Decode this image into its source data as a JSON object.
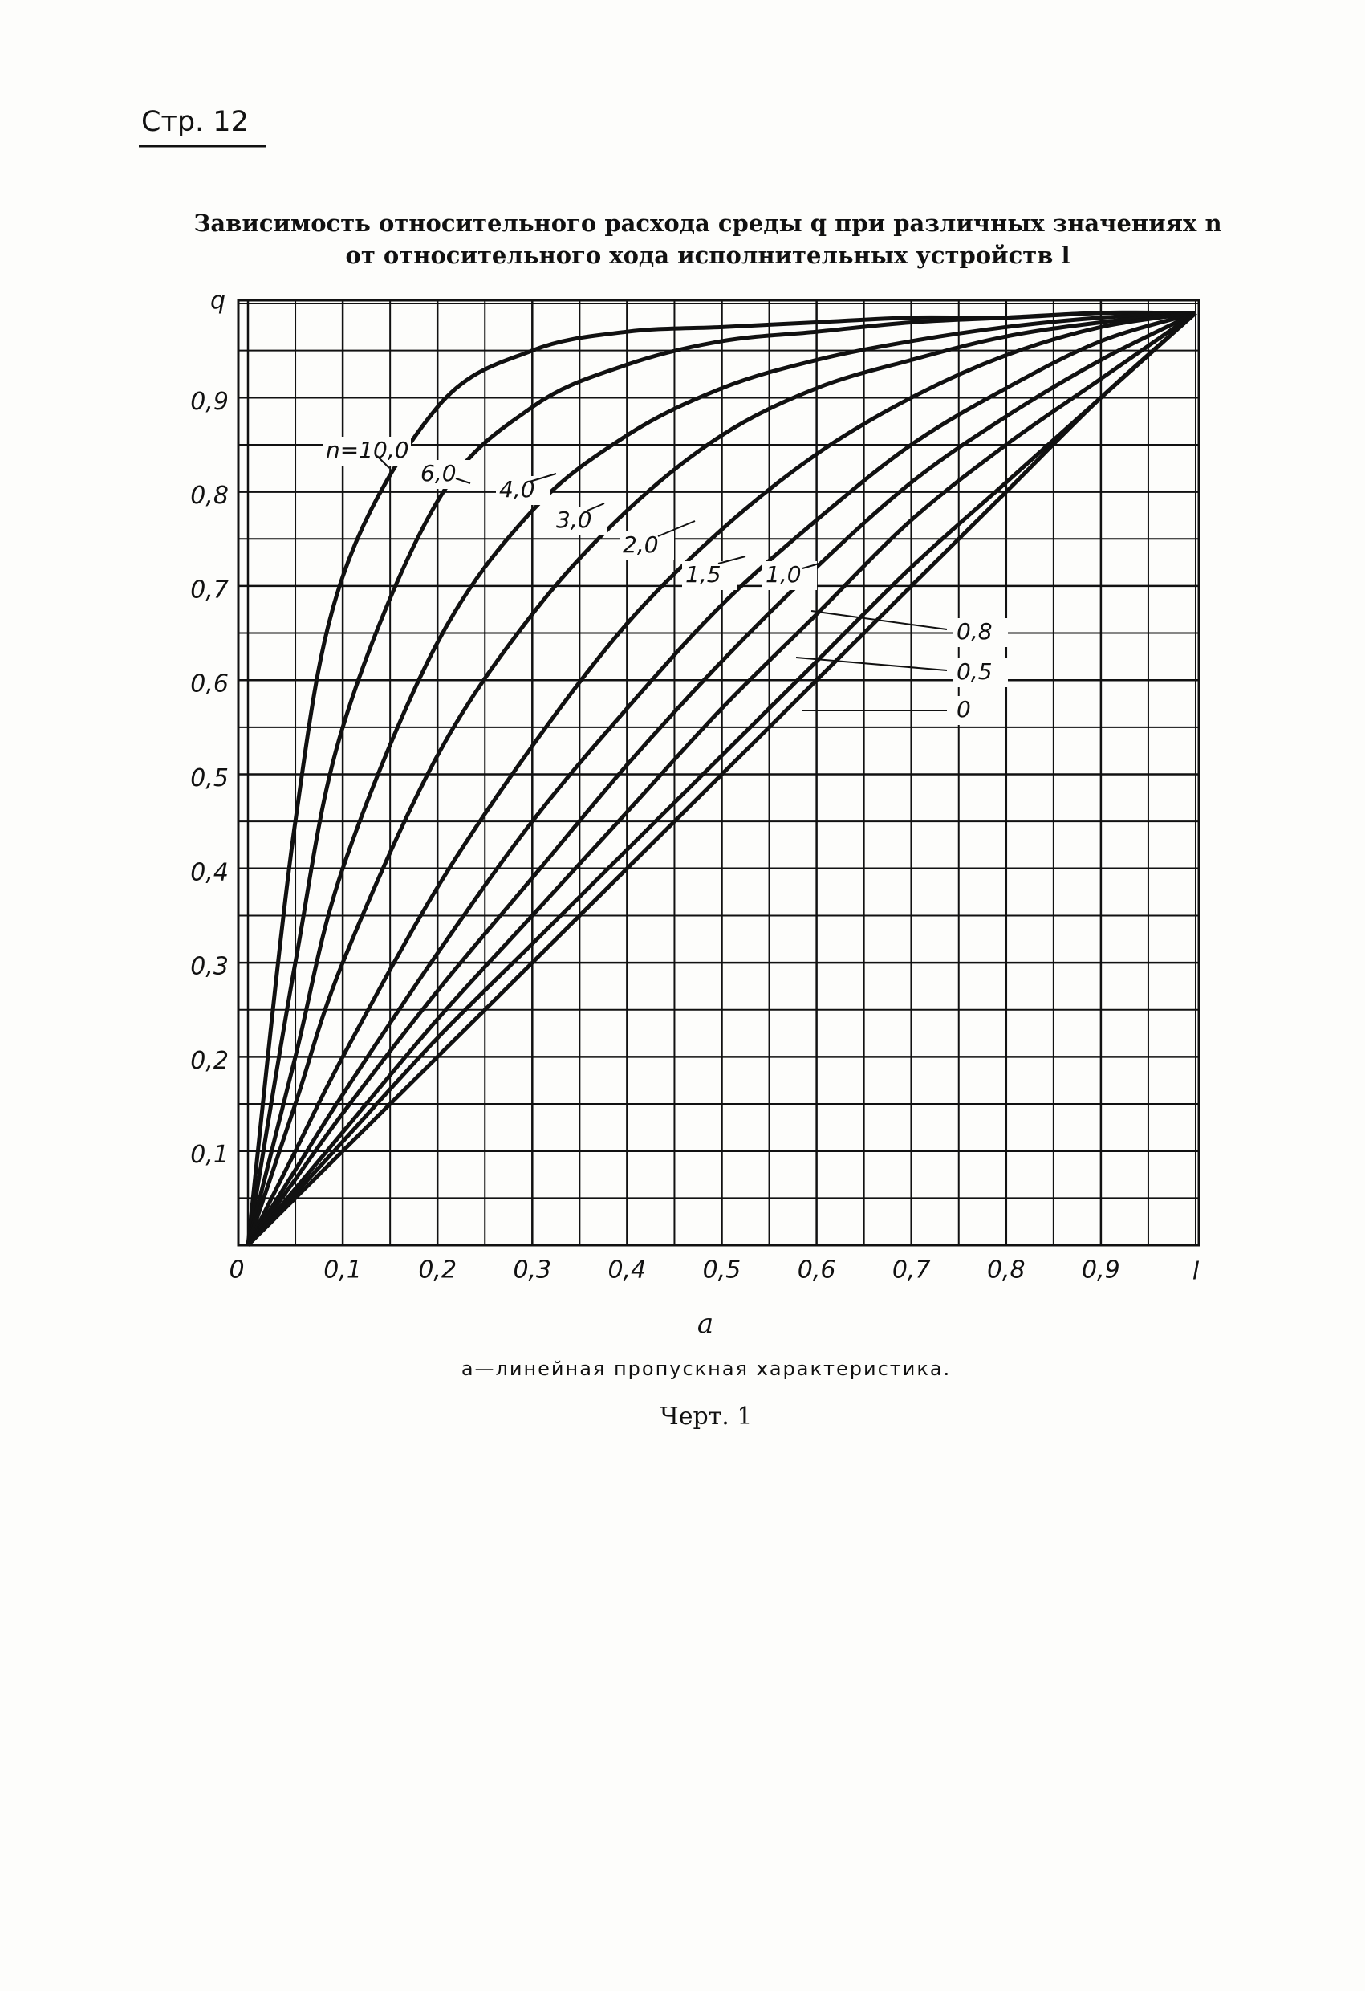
{
  "header": "Стр. 12",
  "chart_data": {
    "type": "line",
    "title": "Зависимость относительного расхода среды q при различных значениях n",
    "subtitle": "от относительного хода исполнительных устройств l",
    "xlabel": "l",
    "ylabel": "q",
    "x": [
      0,
      0.05,
      0.1,
      0.2,
      0.3,
      0.4,
      0.5,
      0.6,
      0.7,
      0.8,
      0.9,
      1.0
    ],
    "series": [
      {
        "name": "n=10,0",
        "color": "#111",
        "values": [
          0,
          0.45,
          0.71,
          0.89,
          0.95,
          0.97,
          0.975,
          0.98,
          0.985,
          0.985,
          0.99,
          0.99
        ]
      },
      {
        "name": "6,0",
        "color": "#111",
        "values": [
          0,
          0.3,
          0.55,
          0.79,
          0.89,
          0.935,
          0.96,
          0.97,
          0.98,
          0.985,
          0.99,
          0.99
        ]
      },
      {
        "name": "4,0",
        "color": "#111",
        "values": [
          0,
          0.2,
          0.4,
          0.64,
          0.78,
          0.86,
          0.91,
          0.94,
          0.96,
          0.975,
          0.985,
          0.99
        ]
      },
      {
        "name": "3,0",
        "color": "#111",
        "values": [
          0,
          0.15,
          0.3,
          0.52,
          0.67,
          0.78,
          0.86,
          0.91,
          0.94,
          0.965,
          0.98,
          0.99
        ]
      },
      {
        "name": "2,0",
        "color": "#111",
        "values": [
          0,
          0.1,
          0.2,
          0.38,
          0.53,
          0.66,
          0.76,
          0.84,
          0.9,
          0.945,
          0.975,
          0.99
        ]
      },
      {
        "name": "1,5",
        "color": "#111",
        "values": [
          0,
          0.08,
          0.16,
          0.31,
          0.45,
          0.57,
          0.68,
          0.77,
          0.85,
          0.91,
          0.96,
          0.99
        ]
      },
      {
        "name": "1,0",
        "color": "#111",
        "values": [
          0,
          0.07,
          0.14,
          0.27,
          0.39,
          0.51,
          0.62,
          0.72,
          0.81,
          0.88,
          0.94,
          0.99
        ]
      },
      {
        "name": "0,8",
        "color": "#111",
        "values": [
          0,
          0.06,
          0.12,
          0.24,
          0.35,
          0.46,
          0.57,
          0.67,
          0.77,
          0.85,
          0.92,
          0.99
        ]
      },
      {
        "name": "0,5",
        "color": "#111",
        "values": [
          0,
          0.055,
          0.11,
          0.22,
          0.32,
          0.42,
          0.52,
          0.62,
          0.72,
          0.81,
          0.9,
          0.99
        ]
      },
      {
        "name": "0",
        "color": "#111",
        "values": [
          0,
          0.05,
          0.1,
          0.2,
          0.3,
          0.4,
          0.5,
          0.6,
          0.7,
          0.8,
          0.9,
          0.99
        ]
      }
    ],
    "xlim": [
      0,
      1
    ],
    "ylim": [
      0,
      1
    ],
    "xticks": [
      {
        "value": 0,
        "label": "0"
      },
      {
        "value": 0.1,
        "label": "0,1"
      },
      {
        "value": 0.2,
        "label": "0,2"
      },
      {
        "value": 0.3,
        "label": "0,3"
      },
      {
        "value": 0.4,
        "label": "0,4"
      },
      {
        "value": 0.5,
        "label": "0,5"
      },
      {
        "value": 0.6,
        "label": "0,6"
      },
      {
        "value": 0.7,
        "label": "0,7"
      },
      {
        "value": 0.8,
        "label": "0,8"
      },
      {
        "value": 0.9,
        "label": "0,9"
      }
    ],
    "yticks": [
      {
        "value": 0.1,
        "label": "0,1"
      },
      {
        "value": 0.2,
        "label": "0,2"
      },
      {
        "value": 0.3,
        "label": "0,3"
      },
      {
        "value": 0.4,
        "label": "0,4"
      },
      {
        "value": 0.5,
        "label": "0,5"
      },
      {
        "value": 0.6,
        "label": "0,6"
      },
      {
        "value": 0.7,
        "label": "0,7"
      },
      {
        "value": 0.8,
        "label": "0,8"
      },
      {
        "value": 0.9,
        "label": "0,9"
      }
    ],
    "minor_xticks": [
      0.05,
      0.15,
      0.25,
      0.35,
      0.45,
      0.55,
      0.65,
      0.75,
      0.85,
      0.95,
      1.0
    ],
    "minor_yticks": [
      0.05,
      0.15,
      0.25,
      0.35,
      0.45,
      0.55,
      0.65,
      0.75,
      0.85,
      0.95,
      1.0
    ],
    "grid": true
  },
  "figure_label": "a",
  "caption": "а—линейная пропускная характеристика.",
  "figure_number": "Черт. 1"
}
